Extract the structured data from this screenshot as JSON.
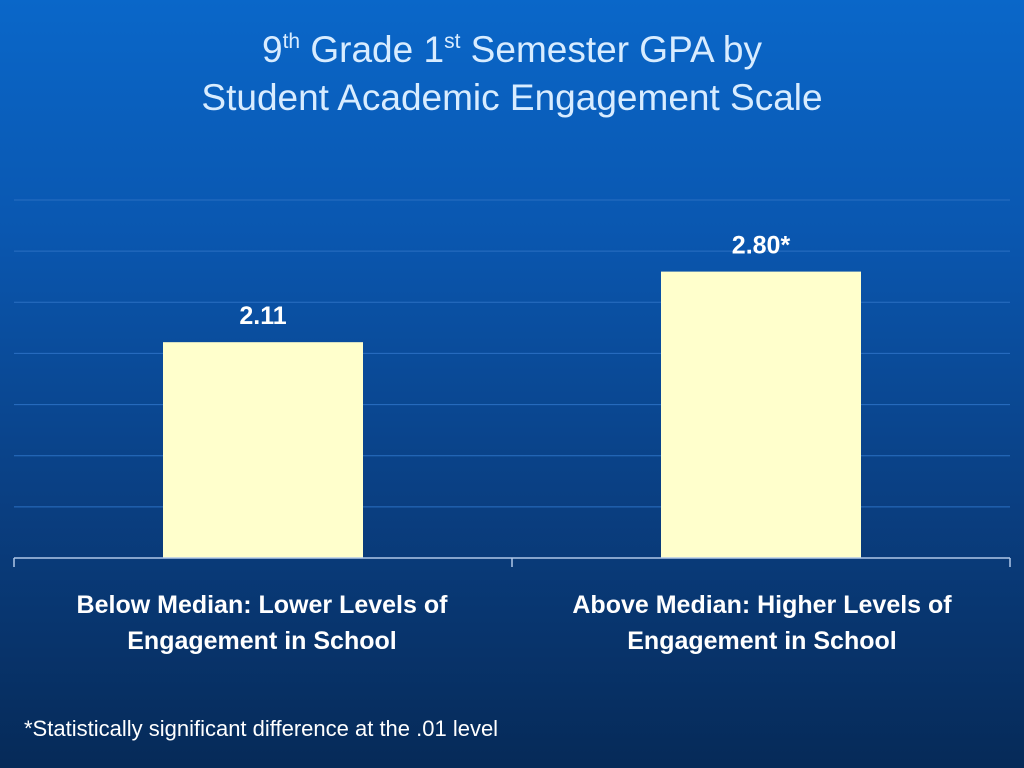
{
  "title": {
    "line1_part1": "9",
    "line1_sup1": "th",
    "line1_part2": " Grade 1",
    "line1_sup2": "st",
    "line1_part3": " Semester GPA by",
    "line2": "Student Academic Engagement Scale"
  },
  "chart_data": {
    "type": "bar",
    "title": "9th Grade 1st Semester GPA by Student Academic Engagement Scale",
    "categories": [
      "Below Median: Lower Levels of Engagement in School",
      "Above Median: Higher Levels of Engagement in School"
    ],
    "category_lines": [
      [
        "Below Median: Lower Levels of",
        "Engagement in School"
      ],
      [
        "Above Median: Higher Levels of",
        "Engagement in School"
      ]
    ],
    "values": [
      2.11,
      2.8
    ],
    "data_labels": [
      "2.11",
      "2.80*"
    ],
    "ylim": [
      0,
      3.5
    ],
    "grid": true,
    "legend": "none",
    "bar_color": "#ffffcc",
    "gridline_color": "#2a6fc2",
    "xlabel": "",
    "ylabel": ""
  },
  "footnote": "*Statistically significant difference at the .01 level"
}
